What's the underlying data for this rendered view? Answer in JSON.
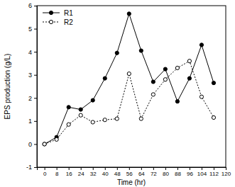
{
  "chart_data": {
    "type": "line",
    "x_label": "Time (hr)",
    "y_label": "EPS production (g/L)",
    "x": [
      0,
      8,
      16,
      24,
      32,
      40,
      48,
      56,
      64,
      72,
      80,
      88,
      96,
      104,
      112
    ],
    "series": [
      {
        "name": "R1",
        "color": "#000000",
        "marker": "circle",
        "line_style": "solid",
        "values": [
          0,
          0.3,
          1.6,
          1.5,
          1.9,
          2.85,
          3.95,
          5.65,
          4.05,
          2.7,
          3.25,
          1.85,
          2.85,
          4.3,
          2.65
        ]
      },
      {
        "name": "R2",
        "color": "#000000",
        "marker": "open-circle",
        "line_style": "dotted",
        "values": [
          0,
          0.2,
          0.85,
          1.25,
          0.95,
          1.05,
          1.1,
          3.05,
          1.1,
          2.15,
          2.8,
          3.3,
          3.6,
          2.05,
          1.15
        ]
      }
    ],
    "xlim": [
      -5,
      120
    ],
    "xticks": [
      0,
      8,
      16,
      24,
      32,
      40,
      48,
      56,
      64,
      72,
      80,
      88,
      96,
      104,
      112,
      120
    ],
    "ylim": [
      -1,
      6
    ],
    "yticks": [
      -1,
      0,
      1,
      2,
      3,
      4,
      5,
      6
    ],
    "legend": "upper left",
    "grid": false
  }
}
